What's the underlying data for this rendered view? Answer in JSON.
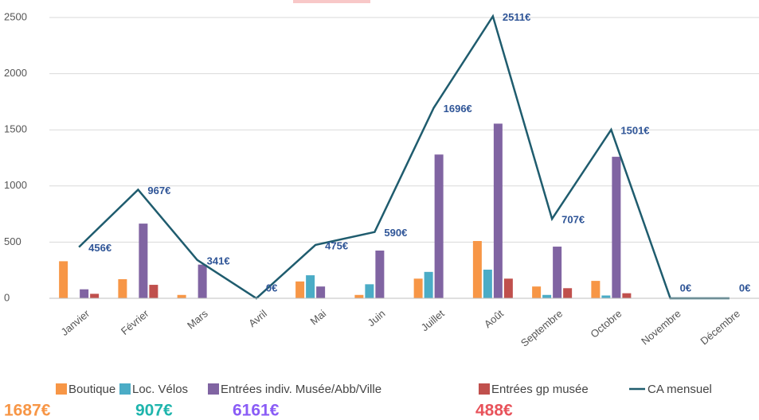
{
  "chart_data": {
    "type": "bar_line",
    "categories": [
      "Janvier",
      "Février",
      "Mars",
      "Avril",
      "Mai",
      "Juin",
      "Juillet",
      "Août",
      "Septembre",
      "Octobre",
      "Novembre",
      "Décembre"
    ],
    "series": [
      {
        "name": "Boutique",
        "color": "#f79646",
        "values": [
          330,
          170,
          30,
          0,
          150,
          30,
          175,
          510,
          105,
          155,
          0,
          0
        ]
      },
      {
        "name": "Loc. Vélos",
        "color": "#4bacc6",
        "values": [
          0,
          0,
          0,
          0,
          205,
          125,
          235,
          255,
          30,
          25,
          0,
          0
        ]
      },
      {
        "name": "Entrées indiv. Musée/Abb/Ville",
        "color": "#8064a2",
        "values": [
          80,
          665,
          300,
          0,
          105,
          425,
          1280,
          1555,
          460,
          1260,
          0,
          0
        ]
      },
      {
        "name": "Entrées gp musée",
        "color": "#c0504d",
        "values": [
          40,
          120,
          0,
          0,
          0,
          0,
          0,
          175,
          90,
          45,
          0,
          0
        ]
      },
      {
        "name": "CA mensuel",
        "color": "#1f5c6e",
        "type": "line",
        "values": [
          456,
          967,
          341,
          0,
          475,
          590,
          1696,
          2511,
          707,
          1501,
          0,
          0
        ],
        "value_labels": [
          "456€",
          "967€",
          "341€",
          "0€",
          "475€",
          "590€",
          "1696€",
          "2511€",
          "707€",
          "1501€",
          "0€",
          "0€"
        ]
      }
    ],
    "totals": [
      {
        "label": "1687€",
        "color": "#f79646"
      },
      {
        "label": "907€",
        "color": "#1fb5ad"
      },
      {
        "label": "6161€",
        "color": "#8a5cf6"
      },
      {
        "label": "488€",
        "color": "#e8535b"
      }
    ],
    "ylim": [
      0,
      2500
    ],
    "yticks": [
      0,
      500,
      1000,
      1500,
      2000,
      2500
    ],
    "grid": true
  }
}
